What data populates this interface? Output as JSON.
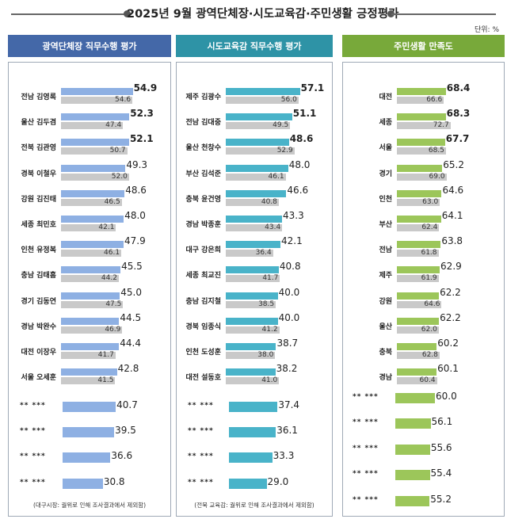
{
  "title": "2025년 9월 광역단체장·시도교육감·주민생활 긍정평가",
  "unit": "단위: %",
  "colors": {
    "panel1_header": "#4468a8",
    "panel1_bar": "#8eb0e3",
    "panel2_header": "#2e93a6",
    "panel2_bar": "#49b3c9",
    "panel3_header": "#78a93a",
    "panel3_bar": "#9cc65a",
    "prev_bar": "#c9c9c9"
  },
  "chart_data": [
    {
      "type": "bar",
      "panel": "panel1",
      "title": "광역단체장 직무수행 평가",
      "categories": [
        "전남 김영록",
        "울산 김두겸",
        "전북 김관영",
        "경북 이철우",
        "강원 김진태",
        "세종 최민호",
        "인천 유정복",
        "충남 김태흠",
        "경기 김동연",
        "경남 박완수",
        "대전 이장우",
        "서울 오세훈",
        "** ***",
        "** ***",
        "** ***",
        "** ***"
      ],
      "series": [
        {
          "name": "current",
          "values": [
            54.9,
            52.3,
            52.1,
            49.3,
            48.6,
            48.0,
            47.9,
            45.5,
            45.0,
            44.5,
            44.4,
            42.8,
            40.7,
            39.5,
            36.6,
            30.8
          ]
        },
        {
          "name": "previous",
          "values": [
            54.6,
            47.4,
            50.7,
            52.0,
            46.5,
            42.1,
            46.1,
            44.2,
            47.5,
            46.9,
            41.7,
            41.5,
            null,
            null,
            null,
            null
          ]
        }
      ],
      "current_labels": [
        "54.9",
        "52.3",
        "52.1",
        "49.3",
        "48.6",
        "48.0",
        "47.9",
        "45.5",
        "45.0",
        "44.5",
        "44.4",
        "42.8",
        "40.7",
        "39.5",
        "36.6",
        "30.8"
      ],
      "previous_labels": [
        "54.6",
        "47.4",
        "50.7",
        "52.0",
        "46.5",
        "42.1",
        "46.1",
        "44.2",
        "47.5",
        "46.9",
        "41.7",
        "41.5",
        "",
        "",
        "",
        ""
      ],
      "note": "(대구시장: 궐위로 인해  조사결과에서 제외함)"
    },
    {
      "type": "bar",
      "panel": "panel2",
      "title": "시도교육감 직무수행 평가",
      "categories": [
        "제주 김광수",
        "전남 김대중",
        "울산 천창수",
        "부산 김석준",
        "충북 윤건영",
        "경남 박종훈",
        "대구 강은희",
        "세종 최교진",
        "충남 김지철",
        "경북 임종식",
        "인천 도성훈",
        "대전 설동호",
        "** ***",
        "** ***",
        "** ***",
        "** ***"
      ],
      "series": [
        {
          "name": "current",
          "values": [
            57.1,
            51.1,
            48.6,
            48.0,
            46.6,
            43.3,
            42.1,
            40.8,
            40.0,
            40.0,
            38.7,
            38.2,
            37.4,
            36.1,
            33.3,
            29.0
          ]
        },
        {
          "name": "previous",
          "values": [
            56.0,
            49.5,
            52.9,
            46.1,
            40.8,
            43.4,
            36.4,
            41.7,
            38.5,
            41.2,
            38.0,
            41.0,
            null,
            null,
            null,
            null
          ]
        }
      ],
      "current_labels": [
        "57.1",
        "51.1",
        "48.6",
        "48.0",
        "46.6",
        "43.3",
        "42.1",
        "40.8",
        "40.0",
        "40.0",
        "38.7",
        "38.2",
        "37.4",
        "36.1",
        "33.3",
        "29.0"
      ],
      "previous_labels": [
        "56.0",
        "49.5",
        "52.9",
        "46.1",
        "40.8",
        "43.4",
        "36.4",
        "41.7",
        "38.5",
        "41.2",
        "38.0",
        "41.0",
        "",
        "",
        "",
        ""
      ],
      "note": "(전북 교육감: 궐위로 인해  조사결과에서 제외함)"
    },
    {
      "type": "bar",
      "panel": "panel3",
      "title": "주민생활 만족도",
      "categories": [
        "대전",
        "세종",
        "서울",
        "경기",
        "인천",
        "부산",
        "전남",
        "제주",
        "강원",
        "울산",
        "충북",
        "경남",
        "** ***",
        "** ***",
        "** ***",
        "** ***",
        "** ***"
      ],
      "series": [
        {
          "name": "current",
          "values": [
            68.4,
            68.3,
            67.7,
            65.2,
            64.6,
            64.1,
            63.8,
            62.9,
            62.2,
            62.2,
            60.2,
            60.1,
            60.0,
            56.1,
            55.6,
            55.4,
            55.2
          ]
        },
        {
          "name": "previous",
          "values": [
            66.6,
            72.7,
            68.5,
            69.0,
            63.0,
            62.4,
            61.8,
            61.9,
            64.6,
            62.0,
            62.8,
            60.4,
            null,
            null,
            null,
            null,
            null
          ]
        }
      ],
      "current_labels": [
        "68.4",
        "68.3",
        "67.7",
        "65.2",
        "64.6",
        "64.1",
        "63.8",
        "62.9",
        "62.2",
        "62.2",
        "60.2",
        "60.1",
        "60.0",
        "56.1",
        "55.6",
        "55.4",
        "55.2"
      ],
      "previous_labels": [
        "66.6",
        "72.7",
        "68.5",
        "69.0",
        "63.0",
        "62.4",
        "61.8",
        "61.9",
        "64.6",
        "62.0",
        "62.8",
        "60.4",
        "",
        "",
        "",
        "",
        ""
      ],
      "note": ""
    }
  ]
}
